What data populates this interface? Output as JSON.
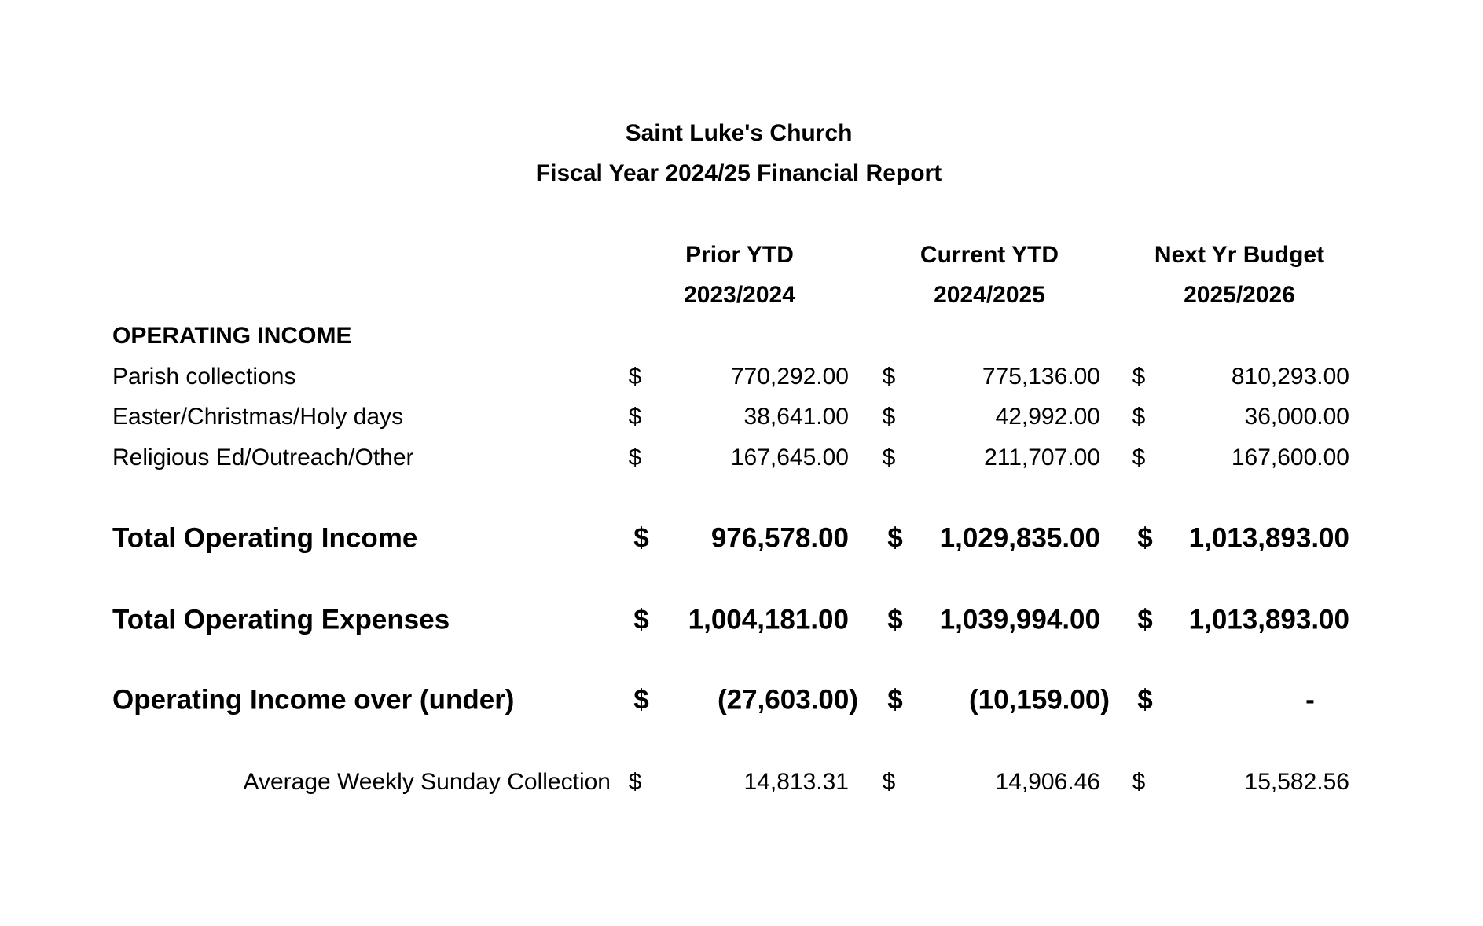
{
  "title": "Saint Luke's Church",
  "subtitle": "Fiscal Year 2024/25 Financial Report",
  "columns": [
    {
      "label": "Prior YTD",
      "period": "2023/2024"
    },
    {
      "label": "Current YTD",
      "period": "2024/2025"
    },
    {
      "label": "Next Yr Budget",
      "period": "2025/2026"
    }
  ],
  "section_heading": "OPERATING INCOME",
  "currency_symbol": "$",
  "income_rows": [
    {
      "label": "Parish collections",
      "values": [
        "770,292.00",
        "775,136.00",
        "810,293.00"
      ]
    },
    {
      "label": "Easter/Christmas/Holy days",
      "values": [
        "38,641.00",
        "42,992.00",
        "36,000.00"
      ]
    },
    {
      "label": "Religious Ed/Outreach/Other",
      "values": [
        "167,645.00",
        "211,707.00",
        "167,600.00"
      ]
    }
  ],
  "summary_rows": [
    {
      "label": "Total Operating Income",
      "values": [
        "976,578.00",
        "1,029,835.00",
        "1,013,893.00"
      ]
    },
    {
      "label": "Total Operating Expenses",
      "values": [
        "1,004,181.00",
        "1,039,994.00",
        "1,013,893.00"
      ]
    },
    {
      "label": "Operating Income over (under)",
      "values": [
        "(27,603.00)",
        "(10,159.00)",
        "-"
      ]
    }
  ],
  "average_row": {
    "label": "Average Weekly Sunday Collection",
    "values": [
      "14,813.31",
      "14,906.46",
      "15,582.56"
    ]
  }
}
